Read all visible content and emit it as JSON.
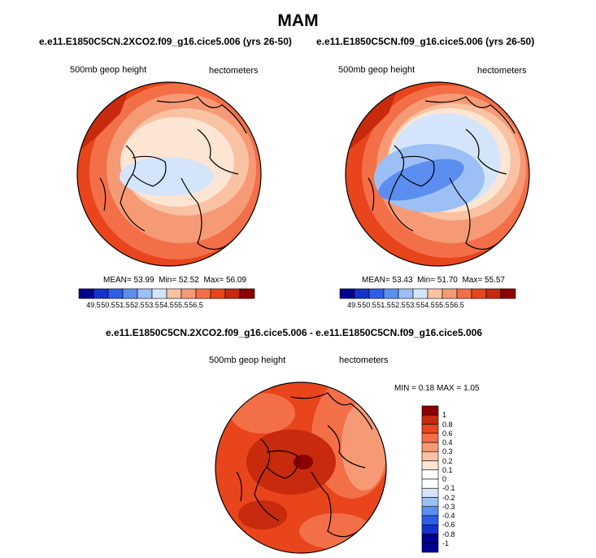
{
  "figure": {
    "season": "MAM"
  },
  "panels": [
    {
      "title": "e.e11.E1850C5CN.2XCO2.f09_g16.cice5.006 (yrs 26-50)",
      "left_label": "500mb geop height",
      "right_label": "hectometers",
      "stats": {
        "mean_label": "MEAN=",
        "mean": "53.99",
        "min_label": "Min=",
        "min": "52.52",
        "max_label": "Max=",
        "max": "56.09"
      },
      "colorbar_ticks": [
        "49.5",
        "50.5",
        "51.5",
        "52.5",
        "53.5",
        "54.5",
        "55.5",
        "56.5"
      ]
    },
    {
      "title": "e.e11.E1850C5CN.f09_g16.cice5.006 (yrs 26-50)",
      "left_label": "500mb geop height",
      "right_label": "hectometers",
      "stats": {
        "mean_label": "MEAN=",
        "mean": "53.43",
        "min_label": "Min=",
        "min": "51.70",
        "max_label": "Max=",
        "max": "55.57"
      },
      "colorbar_ticks": [
        "49.5",
        "50.5",
        "51.5",
        "52.5",
        "53.5",
        "54.5",
        "55.5",
        "56.5"
      ]
    }
  ],
  "difference_panel": {
    "title": "e.e11.E1850C5CN.2XCO2.f09_g16.cice5.006 - e.e11.E1850C5CN.f09_g16.cice5.006",
    "left_label": "500mb geop height",
    "right_label": "hectometers",
    "stats": {
      "min_label": "MIN =",
      "min": "0.18",
      "max_label": "MAX =",
      "max": "1.05"
    },
    "colorbar_ticks": [
      "1",
      "0.8",
      "0.6",
      "0.4",
      "0.3",
      "0.2",
      "0.1",
      "0",
      "-0.1",
      "-0.2",
      "-0.3",
      "-0.4",
      "-0.6",
      "-0.8",
      "-1"
    ]
  },
  "colors": {
    "scale": [
      "#00008f",
      "#1433cc",
      "#2e5ee8",
      "#5c8ef0",
      "#9cc0f5",
      "#d4e5fb",
      "#fde5d3",
      "#f9c2a3",
      "#f69a76",
      "#f36f48",
      "#e8451c",
      "#c72a0d",
      "#8b0000"
    ]
  }
}
